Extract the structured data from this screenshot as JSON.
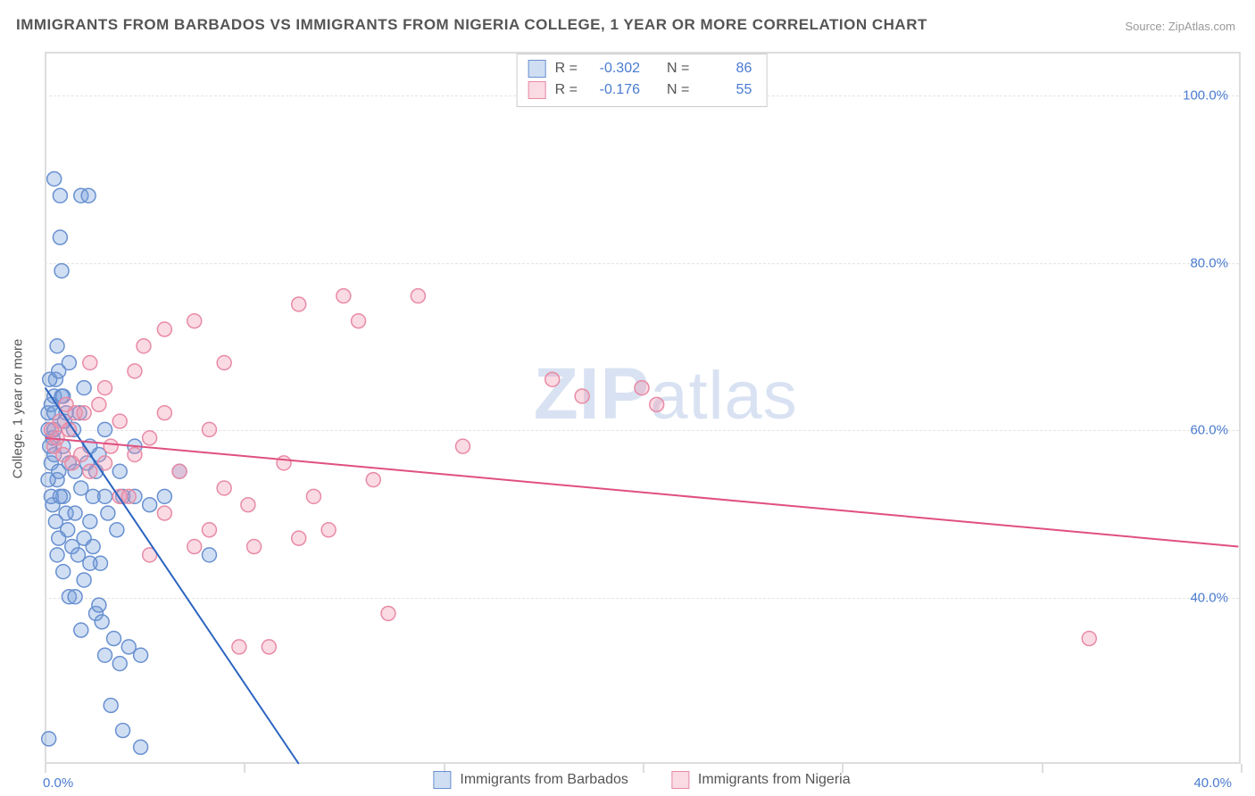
{
  "title": "IMMIGRANTS FROM BARBADOS VS IMMIGRANTS FROM NIGERIA COLLEGE, 1 YEAR OR MORE CORRELATION CHART",
  "source": "Source: ZipAtlas.com",
  "watermark": "ZIPatlas",
  "y_axis_title": "College, 1 year or more",
  "chart": {
    "type": "scatter",
    "xlim": [
      0,
      40
    ],
    "ylim": [
      20,
      105
    ],
    "y_ticks": [
      40,
      60,
      80,
      100
    ],
    "y_tick_labels": [
      "40.0%",
      "60.0%",
      "80.0%",
      "100.0%"
    ],
    "x_ticks": [
      0,
      6.67,
      13.33,
      20,
      26.67,
      33.33,
      40
    ],
    "x_label_min": "0.0%",
    "x_label_max": "40.0%",
    "background_color": "#ffffff",
    "grid_color": "#e4e4e4",
    "axis_color": "#dddddd",
    "tick_label_color": "#4a7bd0",
    "marker_radius": 8,
    "marker_stroke_width": 1.5,
    "line_width": 2
  },
  "series": [
    {
      "name": "Immigrants from Barbados",
      "color_fill": "rgba(120,160,220,0.35)",
      "color_stroke": "#6890d0",
      "line_color": "#2a64c0",
      "R": "-0.302",
      "N": "86",
      "trend": {
        "x1": 0,
        "y1": 65,
        "x2": 8.5,
        "y2": 20
      },
      "points": [
        [
          0.1,
          62
        ],
        [
          0.1,
          60
        ],
        [
          0.15,
          58
        ],
        [
          0.2,
          63
        ],
        [
          0.2,
          56
        ],
        [
          0.25,
          59
        ],
        [
          0.3,
          64
        ],
        [
          0.3,
          62
        ],
        [
          0.3,
          60
        ],
        [
          0.3,
          57
        ],
        [
          0.35,
          66
        ],
        [
          0.4,
          70
        ],
        [
          0.4,
          54
        ],
        [
          0.45,
          55
        ],
        [
          0.5,
          83
        ],
        [
          0.55,
          79
        ],
        [
          0.6,
          52
        ],
        [
          0.6,
          58
        ],
        [
          0.7,
          50
        ],
        [
          0.7,
          62
        ],
        [
          0.75,
          48
        ],
        [
          0.8,
          68
        ],
        [
          0.8,
          56
        ],
        [
          0.9,
          46
        ],
        [
          0.95,
          60
        ],
        [
          1.0,
          50
        ],
        [
          1.0,
          55
        ],
        [
          1.1,
          45
        ],
        [
          1.15,
          62
        ],
        [
          1.2,
          88
        ],
        [
          1.45,
          88
        ],
        [
          1.2,
          53
        ],
        [
          1.3,
          65
        ],
        [
          1.3,
          47
        ],
        [
          1.4,
          56
        ],
        [
          1.5,
          58
        ],
        [
          1.5,
          49
        ],
        [
          1.6,
          52
        ],
        [
          1.7,
          38
        ],
        [
          1.7,
          55
        ],
        [
          1.8,
          39
        ],
        [
          1.85,
          44
        ],
        [
          1.9,
          37
        ],
        [
          2.0,
          60
        ],
        [
          2.0,
          33
        ],
        [
          2.1,
          50
        ],
        [
          2.2,
          27
        ],
        [
          2.3,
          35
        ],
        [
          2.4,
          48
        ],
        [
          2.5,
          32
        ],
        [
          2.5,
          55
        ],
        [
          2.6,
          24
        ],
        [
          2.8,
          34
        ],
        [
          3.0,
          52
        ],
        [
          3.0,
          58
        ],
        [
          3.2,
          33
        ],
        [
          3.2,
          22
        ],
        [
          3.5,
          51
        ],
        [
          4.0,
          52
        ],
        [
          4.5,
          55
        ],
        [
          5.5,
          45
        ],
        [
          0.3,
          90
        ],
        [
          0.5,
          88
        ],
        [
          0.4,
          45
        ],
        [
          0.6,
          43
        ],
        [
          0.8,
          40
        ],
        [
          1.0,
          40
        ],
        [
          1.2,
          36
        ],
        [
          0.25,
          51
        ],
        [
          0.35,
          49
        ],
        [
          0.45,
          47
        ],
        [
          0.55,
          64
        ],
        [
          0.65,
          61
        ],
        [
          0.15,
          66
        ],
        [
          0.1,
          54
        ],
        [
          0.2,
          52
        ],
        [
          0.45,
          67
        ],
        [
          0.5,
          52
        ],
        [
          0.6,
          64
        ],
        [
          2.0,
          52
        ],
        [
          1.5,
          44
        ],
        [
          1.6,
          46
        ],
        [
          1.3,
          42
        ],
        [
          1.8,
          57
        ],
        [
          2.6,
          52
        ],
        [
          0.12,
          23
        ]
      ]
    },
    {
      "name": "Immigrants from Nigeria",
      "color_fill": "rgba(240,150,175,0.35)",
      "color_stroke": "#e88aa5",
      "line_color": "#e05080",
      "R": "-0.176",
      "N": "55",
      "trend": {
        "x1": 0,
        "y1": 59,
        "x2": 40,
        "y2": 46
      },
      "points": [
        [
          0.2,
          60
        ],
        [
          0.3,
          58
        ],
        [
          0.4,
          59
        ],
        [
          0.5,
          61
        ],
        [
          0.6,
          57
        ],
        [
          0.8,
          60
        ],
        [
          1.0,
          62
        ],
        [
          1.2,
          57
        ],
        [
          1.5,
          68
        ],
        [
          1.5,
          55
        ],
        [
          1.8,
          63
        ],
        [
          2.0,
          65
        ],
        [
          2.0,
          56
        ],
        [
          2.2,
          58
        ],
        [
          2.5,
          61
        ],
        [
          2.5,
          52
        ],
        [
          3.0,
          67
        ],
        [
          3.0,
          57
        ],
        [
          3.3,
          70
        ],
        [
          3.5,
          59
        ],
        [
          4.0,
          72
        ],
        [
          4.0,
          50
        ],
        [
          4.5,
          55
        ],
        [
          5.0,
          73
        ],
        [
          5.0,
          46
        ],
        [
          5.5,
          60
        ],
        [
          5.5,
          48
        ],
        [
          6.0,
          68
        ],
        [
          6.0,
          53
        ],
        [
          6.8,
          51
        ],
        [
          7.0,
          46
        ],
        [
          7.5,
          34
        ],
        [
          8.0,
          56
        ],
        [
          8.5,
          47
        ],
        [
          8.5,
          75
        ],
        [
          9.0,
          52
        ],
        [
          9.5,
          48
        ],
        [
          10.0,
          76
        ],
        [
          10.5,
          73
        ],
        [
          11.0,
          54
        ],
        [
          11.5,
          38
        ],
        [
          12.5,
          76
        ],
        [
          14.0,
          58
        ],
        [
          17.0,
          66
        ],
        [
          18.0,
          64
        ],
        [
          20.0,
          65
        ],
        [
          20.5,
          63
        ],
        [
          35.0,
          35
        ],
        [
          6.5,
          34
        ],
        [
          3.5,
          45
        ],
        [
          2.8,
          52
        ],
        [
          1.3,
          62
        ],
        [
          0.9,
          56
        ],
        [
          0.7,
          63
        ],
        [
          4.0,
          62
        ]
      ]
    }
  ],
  "legend_top": {
    "r_label": "R =",
    "n_label": "N ="
  }
}
